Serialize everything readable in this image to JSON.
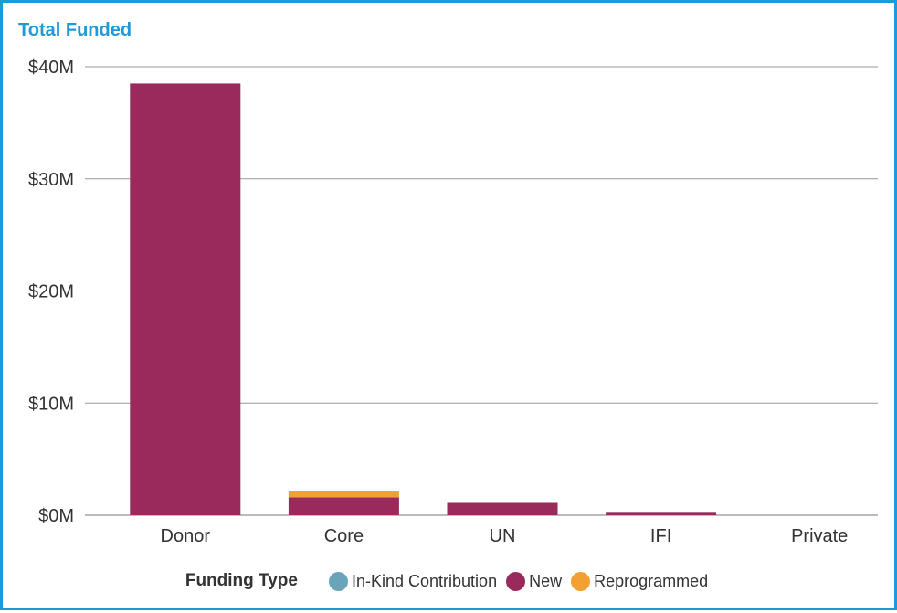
{
  "chart_data": {
    "type": "bar",
    "stacked": true,
    "title": "Total Funded",
    "xlabel": "",
    "ylabel": "",
    "categories": [
      "Donor",
      "Core",
      "UN",
      "IFI",
      "Private"
    ],
    "series": [
      {
        "name": "In-Kind Contribution",
        "color": "#6aa4b8",
        "values": [
          0,
          0,
          0,
          0,
          0
        ]
      },
      {
        "name": "New",
        "color": "#9a2a5b",
        "values": [
          38.5,
          1.6,
          1.1,
          0.3,
          0
        ]
      },
      {
        "name": "Reprogrammed",
        "color": "#f2a032",
        "values": [
          0,
          0.6,
          0,
          0,
          0
        ]
      }
    ],
    "ylim": [
      0,
      40
    ],
    "yticks": [
      0,
      10,
      20,
      30,
      40
    ],
    "ytick_labels": [
      "$0M",
      "$10M",
      "$20M",
      "$30M",
      "$40M"
    ],
    "grid": true,
    "legend": {
      "title": "Funding Type",
      "placement": "bottom"
    }
  }
}
